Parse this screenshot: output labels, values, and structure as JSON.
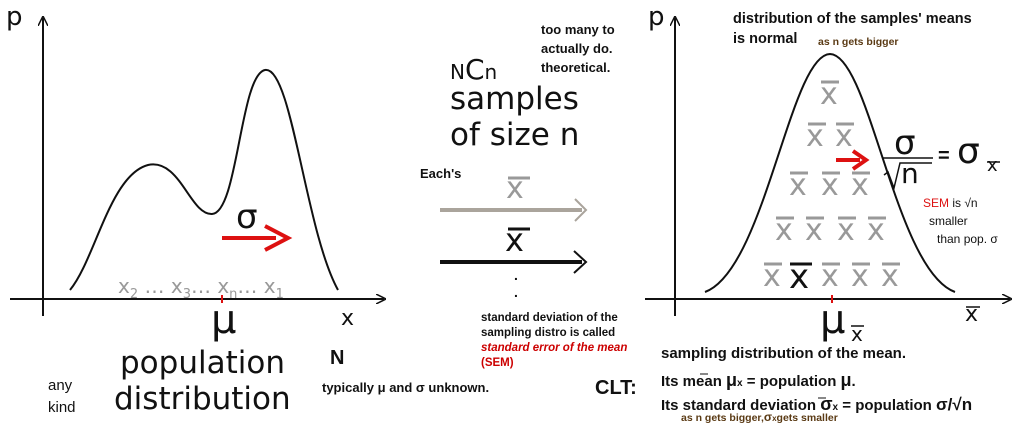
{
  "left_panel": {
    "y_axis_label": "p",
    "x_axis_label": "x",
    "mu_label": "μ",
    "sigma_label": "σ",
    "sample_points": [
      "x",
      "2",
      "…",
      "x",
      "3",
      "…",
      "x",
      "n",
      "…",
      "x",
      "1"
    ],
    "sample_points_text": "x2 … x3… xn… x1",
    "title_line1": "population",
    "title_line2": "distribution",
    "N_label": "N",
    "any_kind_line1": "any",
    "any_kind_line2": "kind",
    "unknown_note": "typically μ and σ unknown."
  },
  "middle": {
    "nCn_pre": "N",
    "nCn_C": "C",
    "nCn_post": "n",
    "samples_line1": "samples",
    "samples_line2": "of size n",
    "too_many_line1": "too many to",
    "too_many_line2": "actually do.",
    "too_many_line3": "theoretical.",
    "eachs": "Each's",
    "xbar_gray": "x",
    "xbar_black": "x",
    "dot1": ".",
    "dot2": ".",
    "sem_line1": "standard deviation of the",
    "sem_line2": "sampling distro is called",
    "sem_line3": "standard error of the mean",
    "sem_line4": "(SEM)"
  },
  "right_panel": {
    "y_axis_label": "p",
    "x_axis_label": "x",
    "mu_label": "μ",
    "mu_subscript": "x",
    "title_line1": "distribution of the samples' means",
    "title_line2": "is normal",
    "as_n_bigger": "as n gets bigger",
    "formula_sigma": "σ",
    "formula_n": "n",
    "formula_equals": "=",
    "formula_sigma_xbar": "σ",
    "formula_sigma_sub": "x",
    "sem_red": "SEM",
    "sem_rest": " is √n",
    "sem_line2": "smaller",
    "sem_line3": "than pop. σ",
    "xbar_glyph": "x"
  },
  "bottom": {
    "sampling_dist": "sampling distribution of the mean.",
    "clt": "CLT:",
    "mean_line_pre": "Its mean ",
    "mean_mu": "μ",
    "mean_sub": "x",
    "mean_line_post": " = population ",
    "mean_mu2": "μ",
    "mean_end": ".",
    "sd_line_pre": "Its standard deviation ",
    "sd_sigma": "σ",
    "sd_sub": "x",
    "sd_line_post": " = population ",
    "sd_end": "σ/√n",
    "footnote_pre": "as n gets bigger,",
    "footnote_sigma": "σ",
    "footnote_sub": "x",
    "footnote_post": "gets smaller"
  },
  "colors": {
    "red": "#dd1111",
    "gray": "#999999",
    "arrow_gray": "#aaa49c",
    "black": "#111111"
  }
}
